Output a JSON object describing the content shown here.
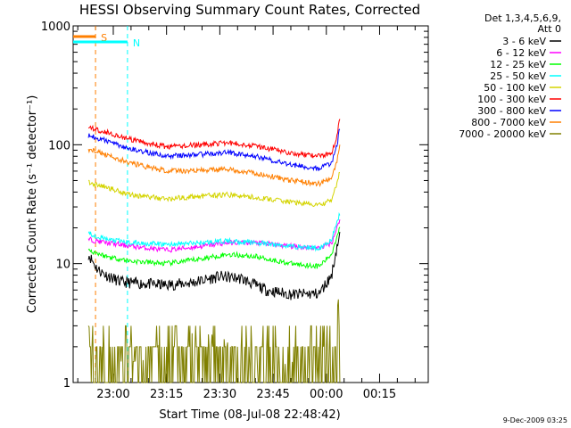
{
  "chart_data": {
    "type": "line",
    "title": "HESSI Observing Summary Count Rates, Corrected",
    "xlabel": "Start Time (08-Jul-08 22:48:42)",
    "ylabel": "Corrected Count Rate (s⁻¹ detector⁻¹)",
    "y_scale": "log",
    "ylim": [
      1,
      1000
    ],
    "y_ticks": [
      {
        "value": 1,
        "label": "1"
      },
      {
        "value": 10,
        "label": "10"
      },
      {
        "value": 100,
        "label": "100"
      },
      {
        "value": 1000,
        "label": "1000"
      }
    ],
    "xlim": [
      "22:48:42",
      "00:28:42"
    ],
    "x_ticks": [
      {
        "t": "23:00",
        "label": "23:00"
      },
      {
        "t": "23:15",
        "label": "23:15"
      },
      {
        "t": "23:30",
        "label": "23:30"
      },
      {
        "t": "23:45",
        "label": "23:45"
      },
      {
        "t": "00:00",
        "label": "00:00"
      },
      {
        "t": "00:15",
        "label": "00:15"
      }
    ],
    "legend_title": [
      "Det 1,3,4,5,6,9,",
      "Att 0"
    ],
    "legend_position": "right, outside plot",
    "series": [
      {
        "name": "3 - 6 keV",
        "color": "#000000",
        "points": [
          [
            "22:53:00",
            12
          ],
          [
            "22:55:30",
            9
          ],
          [
            "22:58:00",
            8
          ],
          [
            "23:02:00",
            7
          ],
          [
            "23:08:00",
            6.8
          ],
          [
            "23:15:00",
            6.6
          ],
          [
            "23:22:00",
            6.9
          ],
          [
            "23:30:00",
            7.8
          ],
          [
            "23:36:00",
            7.5
          ],
          [
            "23:43:00",
            6
          ],
          [
            "23:50:00",
            5.5
          ],
          [
            "23:58:00",
            5.6
          ],
          [
            "00:01:30",
            8
          ],
          [
            "00:03:00",
            14
          ],
          [
            "00:04:00",
            18
          ]
        ]
      },
      {
        "name": "6 - 12 keV",
        "color": "#ff00ff",
        "points": [
          [
            "22:53:00",
            16
          ],
          [
            "22:58:00",
            15
          ],
          [
            "23:05:00",
            14
          ],
          [
            "23:15:00",
            13
          ],
          [
            "23:25:00",
            14
          ],
          [
            "23:32:00",
            15
          ],
          [
            "23:40:00",
            15
          ],
          [
            "23:50:00",
            14
          ],
          [
            "23:58:00",
            13.5
          ],
          [
            "00:01:30",
            15
          ],
          [
            "00:03:00",
            20
          ],
          [
            "00:04:00",
            25
          ]
        ]
      },
      {
        "name": "12 - 25 keV",
        "color": "#00ff00",
        "points": [
          [
            "22:53:00",
            13
          ],
          [
            "22:58:00",
            11.5
          ],
          [
            "23:05:00",
            10.5
          ],
          [
            "23:15:00",
            10
          ],
          [
            "23:25:00",
            11
          ],
          [
            "23:32:00",
            12
          ],
          [
            "23:40:00",
            11.5
          ],
          [
            "23:50:00",
            10
          ],
          [
            "23:58:00",
            9.5
          ],
          [
            "00:01:30",
            12
          ],
          [
            "00:03:00",
            17
          ],
          [
            "00:04:00",
            22
          ]
        ]
      },
      {
        "name": "25 - 50 keV",
        "color": "#00ffff",
        "points": [
          [
            "22:53:00",
            18
          ],
          [
            "22:58:00",
            16
          ],
          [
            "23:05:00",
            15
          ],
          [
            "23:15:00",
            14.5
          ],
          [
            "23:25:00",
            15
          ],
          [
            "23:32:00",
            15.5
          ],
          [
            "23:40:00",
            15
          ],
          [
            "23:50:00",
            14
          ],
          [
            "23:58:00",
            13.5
          ],
          [
            "00:01:30",
            16
          ],
          [
            "00:03:00",
            22
          ],
          [
            "00:04:00",
            28
          ]
        ]
      },
      {
        "name": "50 - 100 keV",
        "color": "#d4d400",
        "points": [
          [
            "22:53:00",
            48
          ],
          [
            "22:58:00",
            44
          ],
          [
            "23:05:00",
            38
          ],
          [
            "23:15:00",
            35
          ],
          [
            "23:25:00",
            37
          ],
          [
            "23:32:00",
            38
          ],
          [
            "23:40:00",
            36
          ],
          [
            "23:50:00",
            33
          ],
          [
            "23:58:00",
            31
          ],
          [
            "00:01:30",
            34
          ],
          [
            "00:03:00",
            48
          ],
          [
            "00:04:00",
            62
          ]
        ]
      },
      {
        "name": "100 - 300 keV",
        "color": "#ff0000",
        "points": [
          [
            "22:53:00",
            140
          ],
          [
            "22:58:00",
            128
          ],
          [
            "23:05:00",
            110
          ],
          [
            "23:15:00",
            96
          ],
          [
            "23:25:00",
            100
          ],
          [
            "23:32:00",
            104
          ],
          [
            "23:40:00",
            98
          ],
          [
            "23:50:00",
            85
          ],
          [
            "23:58:00",
            80
          ],
          [
            "00:01:30",
            86
          ],
          [
            "00:03:00",
            120
          ],
          [
            "00:04:00",
            185
          ]
        ]
      },
      {
        "name": "300 - 800 keV",
        "color": "#0000ff",
        "points": [
          [
            "22:53:00",
            120
          ],
          [
            "22:58:00",
            108
          ],
          [
            "23:05:00",
            92
          ],
          [
            "23:15:00",
            80
          ],
          [
            "23:25:00",
            83
          ],
          [
            "23:32:00",
            86
          ],
          [
            "23:40:00",
            80
          ],
          [
            "23:50:00",
            68
          ],
          [
            "23:58:00",
            63
          ],
          [
            "00:01:30",
            70
          ],
          [
            "00:03:00",
            100
          ],
          [
            "00:04:00",
            150
          ]
        ]
      },
      {
        "name": "800 - 7000 keV",
        "color": "#ff7f00",
        "points": [
          [
            "22:53:00",
            92
          ],
          [
            "22:58:00",
            82
          ],
          [
            "23:05:00",
            70
          ],
          [
            "23:15:00",
            60
          ],
          [
            "23:25:00",
            61
          ],
          [
            "23:32:00",
            62
          ],
          [
            "23:40:00",
            58
          ],
          [
            "23:50:00",
            50
          ],
          [
            "23:58:00",
            47
          ],
          [
            "00:01:30",
            52
          ],
          [
            "00:03:00",
            72
          ],
          [
            "00:04:00",
            108
          ]
        ]
      },
      {
        "name": "7000 - 20000 keV",
        "color": "#808000",
        "points": [
          [
            "22:53:00",
            3
          ],
          [
            "22:56:00",
            2
          ],
          [
            "22:58:00",
            3
          ],
          [
            "23:00:00",
            1.5
          ],
          [
            "23:08:00",
            1.5
          ],
          [
            "23:12:00",
            2
          ],
          [
            "23:22:00",
            2.6
          ],
          [
            "23:30:00",
            2.5
          ],
          [
            "23:38:00",
            1.5
          ],
          [
            "23:42:00",
            1.2
          ],
          [
            "23:50:00",
            1.5
          ],
          [
            "23:58:00",
            1.3
          ],
          [
            "00:01:30",
            2
          ],
          [
            "00:03:00",
            4
          ],
          [
            "00:04:00",
            7
          ]
        ]
      }
    ],
    "annotations": [
      {
        "label": "S",
        "color": "#ff7f00",
        "t_start": "22:48:42",
        "t_end": "22:55:00",
        "kind": "flag"
      },
      {
        "label": "N",
        "color": "#00ffff",
        "t_start": "22:48:42",
        "t_end": "23:04:00",
        "kind": "flag"
      }
    ],
    "timestamp": "9-Dec-2009 03:25"
  }
}
